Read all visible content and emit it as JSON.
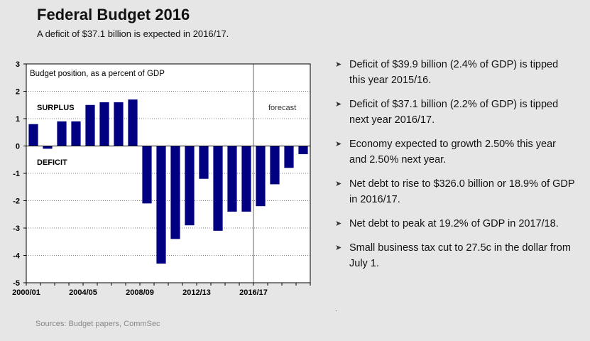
{
  "header": {
    "title": "Federal Budget 2016",
    "subtitle": "A deficit of $37.1 billion is expected in 2016/17."
  },
  "chart_data": {
    "type": "bar",
    "title": "Budget position, as a percent of GDP",
    "annotations": [
      "SURPLUS",
      "DEFICIT",
      "forecast"
    ],
    "ylim": [
      -5,
      3
    ],
    "yticks": [
      3,
      2,
      1,
      0,
      -1,
      -2,
      -3,
      -4,
      -5
    ],
    "xtick_labels": [
      "2000/01",
      "2004/05",
      "2008/09",
      "2012/13",
      "2016/17"
    ],
    "xtick_indices": [
      0,
      4,
      8,
      12,
      16
    ],
    "forecast_start_index": 16,
    "categories": [
      "2000/01",
      "2001/02",
      "2002/03",
      "2003/04",
      "2004/05",
      "2005/06",
      "2006/07",
      "2007/08",
      "2008/09",
      "2009/10",
      "2010/11",
      "2011/12",
      "2012/13",
      "2013/14",
      "2014/15",
      "2015/16",
      "2016/17",
      "2017/18",
      "2018/19",
      "2019/20"
    ],
    "values": [
      0.8,
      -0.1,
      0.9,
      0.9,
      1.5,
      1.6,
      1.6,
      1.7,
      -2.1,
      -4.3,
      -3.4,
      -2.9,
      -1.2,
      -3.1,
      -2.4,
      -2.4,
      -2.2,
      -1.4,
      -0.8,
      -0.3
    ],
    "bar_color": "#000080",
    "grid": true
  },
  "bullets": [
    {
      "text": "Deficit of $39.9 billion (2.4% of GDP) is tipped this year 2015/16."
    },
    {
      "text": "Deficit of $37.1 billion (2.2% of GDP) is tipped next year 2016/17."
    },
    {
      "text": "Economy expected to growth 2.50% this year and 2.50% next year."
    },
    {
      "text": "Net debt to rise to $326.0 billion or 18.9% of GDP in 2016/17."
    },
    {
      "text": "Net debt to peak at 19.2% of GDP in 2017/18."
    },
    {
      "text": "Small business tax cut to 27.5c in the dollar from July 1."
    }
  ],
  "footer": {
    "sources": "Sources: Budget papers, CommSec",
    "dot": "."
  }
}
